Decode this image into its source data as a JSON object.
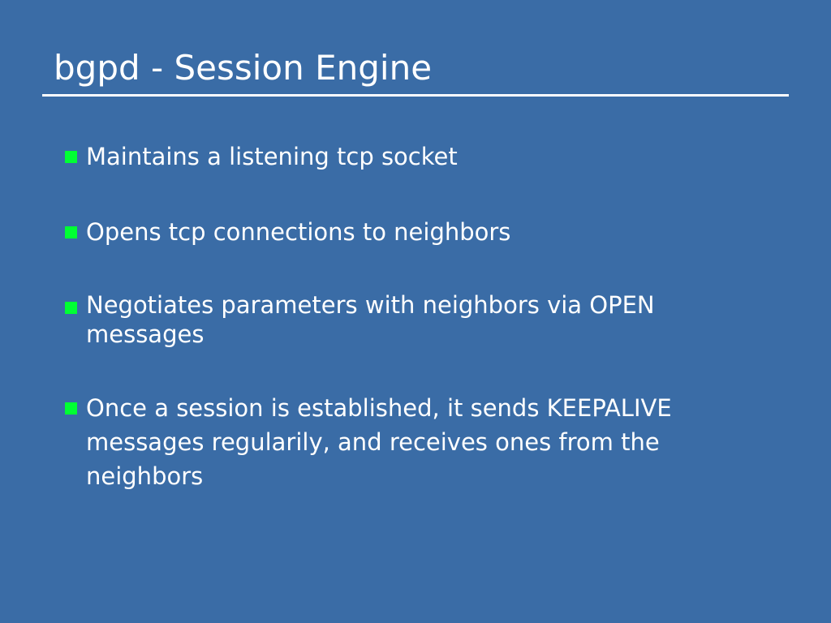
{
  "slide": {
    "title": "bgpd - Session Engine",
    "bullets": [
      {
        "text": "Maintains a listening tcp socket"
      },
      {
        "text": "Opens tcp connections to neighbors"
      },
      {
        "text": "Negotiates parameters with neighbors via OPEN messages"
      },
      {
        "text": "Once a session is established, it sends KEEPALIVE messages regularily, and receives ones from the neighbors"
      }
    ]
  },
  "colors": {
    "background": "#3a6ca6",
    "text": "#ffffff",
    "bullet_marker": "#00ff33",
    "title_rule": "#ffffff"
  },
  "icons": {
    "bullet_marker": "green-square-bullet-icon"
  }
}
